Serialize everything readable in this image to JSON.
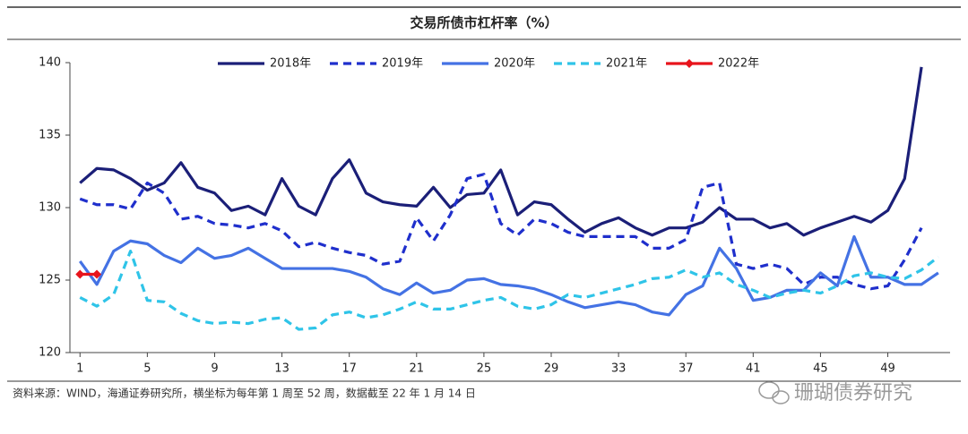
{
  "chart_data": {
    "type": "line",
    "title": "交易所债市杠杆率（%）",
    "note": "资料来源：WIND，海通证券研究所，横坐标为每年第 1 周至 52 周，数据截至 22 年 1 月 14 日",
    "watermark": "珊瑚债券研究",
    "legend": "top",
    "x": [
      1,
      2,
      3,
      4,
      5,
      6,
      7,
      8,
      9,
      10,
      11,
      12,
      13,
      14,
      15,
      16,
      17,
      18,
      19,
      20,
      21,
      22,
      23,
      24,
      25,
      26,
      27,
      28,
      29,
      30,
      31,
      32,
      33,
      34,
      35,
      36,
      37,
      38,
      39,
      40,
      41,
      42,
      43,
      44,
      45,
      46,
      47,
      48,
      49,
      50,
      51,
      52
    ],
    "xlim": [
      0.4,
      52.7
    ],
    "xticks": [
      1,
      5,
      9,
      13,
      17,
      21,
      25,
      29,
      33,
      37,
      41,
      45,
      49
    ],
    "ylim": [
      120,
      140
    ],
    "yticks": [
      120,
      125,
      130,
      135,
      140
    ],
    "series": [
      {
        "name": "2018年",
        "color": "#1b1f78",
        "dash": "solid",
        "values": [
          131.7,
          132.7,
          132.6,
          132.0,
          131.2,
          131.7,
          133.1,
          131.4,
          131.0,
          129.8,
          130.1,
          129.5,
          132.0,
          130.1,
          129.5,
          132.0,
          133.3,
          131.0,
          130.4,
          130.2,
          130.1,
          131.4,
          130.0,
          130.9,
          131.0,
          132.6,
          129.5,
          130.4,
          130.2,
          129.2,
          128.3,
          128.9,
          129.3,
          128.6,
          128.1,
          128.6,
          128.6,
          129.0,
          130.0,
          129.2,
          129.2,
          128.6,
          128.9,
          128.1,
          128.6,
          129.0,
          129.4,
          129.0,
          129.8,
          132.0,
          139.7,
          null
        ]
      },
      {
        "name": "2019年",
        "color": "#1f2fcc",
        "dash": "dashed",
        "values": [
          130.6,
          130.2,
          130.2,
          129.9,
          131.7,
          131.0,
          129.2,
          129.4,
          128.9,
          128.8,
          128.6,
          128.9,
          128.4,
          127.3,
          127.6,
          127.2,
          126.9,
          126.7,
          126.1,
          126.3,
          129.3,
          127.7,
          129.5,
          132.0,
          132.3,
          128.9,
          128.1,
          129.2,
          128.9,
          128.3,
          128.0,
          128.0,
          128.0,
          128.0,
          127.2,
          127.2,
          127.8,
          131.4,
          131.7,
          126.1,
          125.8,
          126.1,
          125.8,
          124.7,
          125.2,
          125.2,
          124.7,
          124.4,
          124.6,
          126.4,
          128.6,
          null
        ]
      },
      {
        "name": "2020年",
        "color": "#4472e4",
        "dash": "solid",
        "values": [
          126.3,
          124.7,
          127.0,
          127.7,
          127.5,
          126.7,
          126.2,
          127.2,
          126.5,
          126.7,
          127.2,
          126.5,
          125.8,
          125.8,
          125.8,
          125.8,
          125.6,
          125.2,
          124.4,
          124.0,
          124.8,
          124.1,
          124.3,
          125.0,
          125.1,
          124.7,
          124.6,
          124.4,
          124.0,
          123.5,
          123.1,
          123.3,
          123.5,
          123.3,
          122.8,
          122.6,
          124.0,
          124.6,
          127.2,
          125.8,
          123.6,
          123.8,
          124.3,
          124.3,
          125.5,
          124.6,
          128.0,
          125.2,
          125.2,
          124.7,
          124.7,
          125.5
        ]
      },
      {
        "name": "2021年",
        "color": "#2fc4e8",
        "dash": "dashed",
        "values": [
          123.8,
          123.2,
          124.0,
          127.0,
          123.6,
          123.5,
          122.7,
          122.2,
          122.0,
          122.1,
          122.0,
          122.3,
          122.4,
          121.6,
          121.7,
          122.6,
          122.8,
          122.4,
          122.6,
          123.0,
          123.5,
          123.0,
          123.0,
          123.3,
          123.6,
          123.8,
          123.2,
          123.0,
          123.3,
          124.0,
          123.8,
          124.1,
          124.4,
          124.7,
          125.1,
          125.2,
          125.7,
          125.2,
          125.5,
          124.7,
          124.3,
          123.8,
          124.1,
          124.3,
          124.1,
          124.6,
          125.3,
          125.5,
          125.2,
          125.1,
          125.7,
          126.6
        ]
      },
      {
        "name": "2022年",
        "color": "#e8141c",
        "dash": "solid",
        "marker": "diamond",
        "values": [
          125.4,
          125.4,
          null,
          null,
          null,
          null,
          null,
          null,
          null,
          null,
          null,
          null,
          null,
          null,
          null,
          null,
          null,
          null,
          null,
          null,
          null,
          null,
          null,
          null,
          null,
          null,
          null,
          null,
          null,
          null,
          null,
          null,
          null,
          null,
          null,
          null,
          null,
          null,
          null,
          null,
          null,
          null,
          null,
          null,
          null,
          null,
          null,
          null,
          null,
          null,
          null,
          null
        ]
      }
    ]
  }
}
